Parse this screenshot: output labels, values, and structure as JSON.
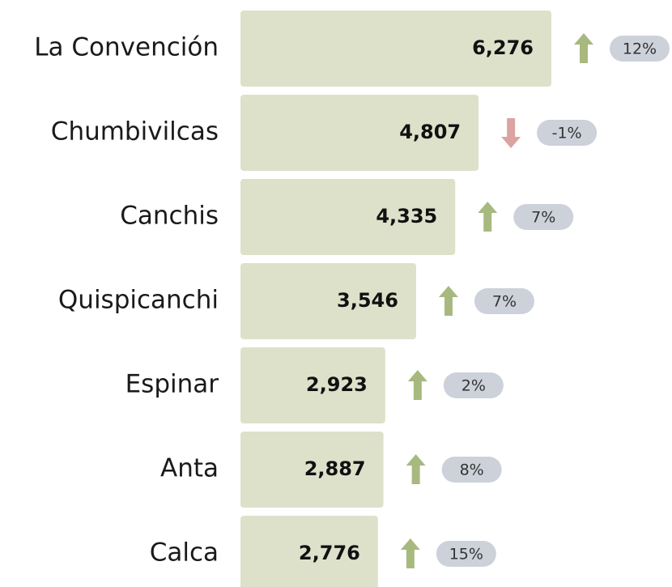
{
  "chart_data": {
    "type": "bar",
    "orientation": "horizontal",
    "categories": [
      "La Convención",
      "Chumbivilcas",
      "Canchis",
      "Quispicanchi",
      "Espinar",
      "Anta",
      "Calca"
    ],
    "values": [
      6276,
      4807,
      4335,
      3546,
      2923,
      2887,
      2776
    ],
    "value_labels": [
      "6,276",
      "4,807",
      "4,335",
      "3,546",
      "2,923",
      "2,887",
      "2,776"
    ],
    "changes": [
      12,
      -1,
      7,
      7,
      2,
      8,
      15
    ],
    "change_labels": [
      "12%",
      "-1%",
      "7%",
      "7%",
      "2%",
      "8%",
      "15%"
    ],
    "color": "#dee1ca",
    "up_color": "#a8b97f",
    "down_color": "#dba3a1",
    "pill_color": "#ccd1da"
  }
}
